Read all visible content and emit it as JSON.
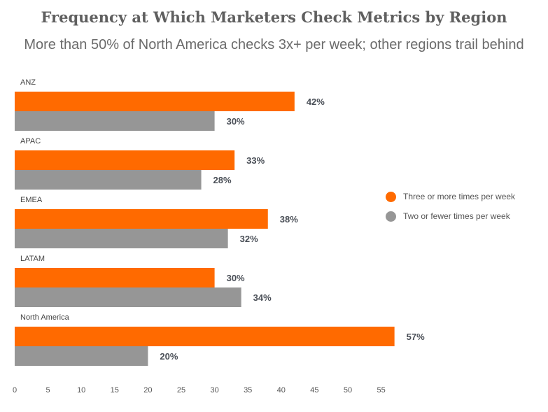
{
  "chart_data": {
    "type": "bar",
    "orientation": "horizontal",
    "title": "Frequency at Which Marketers Check Metrics by Region",
    "subtitle": "More than 50% of North America checks 3x+ per week; other regions trail behind",
    "categories": [
      "ANZ",
      "APAC",
      "EMEA",
      "LATAM",
      "North America"
    ],
    "series": [
      {
        "name": "Three or more times per week",
        "color": "#ff6a00",
        "values": [
          42,
          33,
          38,
          30,
          57
        ]
      },
      {
        "name": "Two or fewer times per week",
        "color": "#969696",
        "values": [
          30,
          28,
          32,
          34,
          20
        ]
      }
    ],
    "value_labels": [
      [
        "42%",
        "33%",
        "38%",
        "30%",
        "57%"
      ],
      [
        "30%",
        "28%",
        "32%",
        "34%",
        "20%"
      ]
    ],
    "xticks": [
      "0",
      "5",
      "10",
      "15",
      "20",
      "25",
      "30",
      "35",
      "40",
      "45",
      "50",
      "55"
    ],
    "xlim": [
      0,
      57
    ],
    "grid": false,
    "legend_position": "right"
  }
}
